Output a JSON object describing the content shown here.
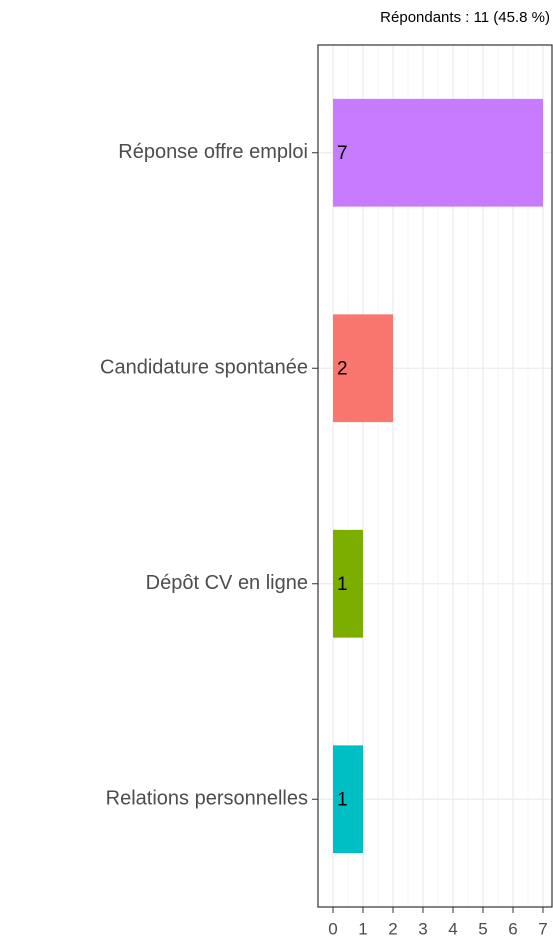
{
  "chart_data": {
    "type": "bar",
    "orientation": "horizontal",
    "subtitle": "Répondants : 11 (45.8 %)",
    "categories": [
      "Réponse offre emploi",
      "Candidature spontanée",
      "Dépôt CV en ligne",
      "Relations personnelles"
    ],
    "series": [
      {
        "values": [
          7,
          2,
          1,
          1
        ],
        "colors": [
          "#C77CFF",
          "#F8766D",
          "#7CAE00",
          "#00BFC4"
        ]
      }
    ],
    "xlim": [
      -0.5,
      7.3
    ],
    "xticks": [
      0,
      1,
      2,
      3,
      4,
      5,
      6,
      7
    ],
    "grid": true
  }
}
